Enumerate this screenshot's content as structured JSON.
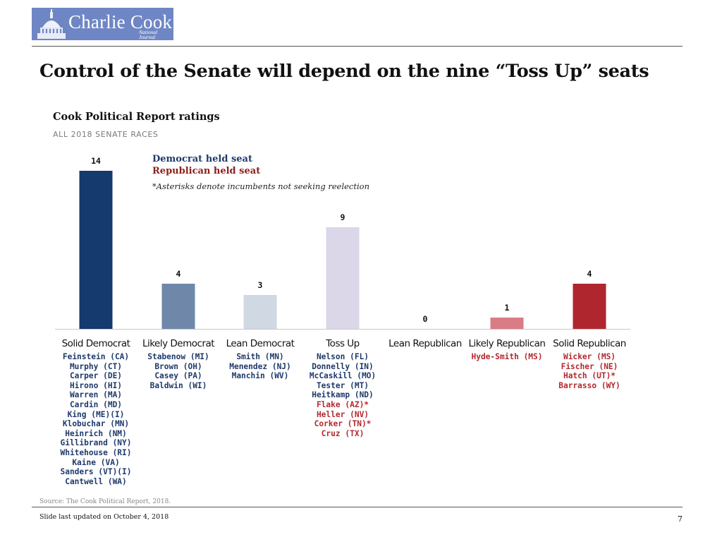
{
  "header": {
    "logo_text": "Charlie Cook",
    "logo_sub_line1": "National",
    "logo_sub_line2": "Journal",
    "title": "Control of the Senate will depend on the nine “Toss Up” seats"
  },
  "legend": {
    "dem": "Democrat held seat",
    "rep": "Republican held seat",
    "note": "*Asterisks denote incumbents not seeking reelection"
  },
  "colors": {
    "dem_text": "#1f3a6b",
    "rep_text": "#b22a2f",
    "logo_bg": "#6f86c4"
  },
  "chart_data": {
    "type": "bar",
    "title": "Cook Political Report ratings",
    "subtitle": "ALL 2018 SENATE RACES",
    "categories": [
      "Solid Democrat",
      "Likely Democrat",
      "Lean Democrat",
      "Toss Up",
      "Lean Republican",
      "Likely Republican",
      "Solid Republican"
    ],
    "values": [
      14,
      4,
      3,
      9,
      0,
      1,
      4
    ],
    "bar_colors": [
      "#143a6e",
      "#6f88aa",
      "#cfd8e3",
      "#dcd7e8",
      "#dcd7e8",
      "#d97c85",
      "#b0262e"
    ],
    "ylim": [
      0,
      14
    ],
    "xlabel": "",
    "ylabel": "",
    "candidates": [
      [
        {
          "name": "Feinstein (CA)",
          "party": "dem"
        },
        {
          "name": "Murphy (CT)",
          "party": "dem"
        },
        {
          "name": "Carper (DE)",
          "party": "dem"
        },
        {
          "name": "Hirono (HI)",
          "party": "dem"
        },
        {
          "name": "Warren (MA)",
          "party": "dem"
        },
        {
          "name": "Cardin (MD)",
          "party": "dem"
        },
        {
          "name": "King (ME)(I)",
          "party": "dem"
        },
        {
          "name": "Klobuchar (MN)",
          "party": "dem"
        },
        {
          "name": "Heinrich (NM)",
          "party": "dem"
        },
        {
          "name": "Gillibrand (NY)",
          "party": "dem"
        },
        {
          "name": "Whitehouse (RI)",
          "party": "dem"
        },
        {
          "name": "Kaine (VA)",
          "party": "dem"
        },
        {
          "name": "Sanders (VT)(I)",
          "party": "dem"
        },
        {
          "name": "Cantwell (WA)",
          "party": "dem"
        }
      ],
      [
        {
          "name": "Stabenow (MI)",
          "party": "dem"
        },
        {
          "name": "Brown (OH)",
          "party": "dem"
        },
        {
          "name": "Casey (PA)",
          "party": "dem"
        },
        {
          "name": "Baldwin (WI)",
          "party": "dem"
        }
      ],
      [
        {
          "name": "Smith (MN)",
          "party": "dem"
        },
        {
          "name": "Menendez (NJ)",
          "party": "dem"
        },
        {
          "name": "Manchin (WV)",
          "party": "dem"
        }
      ],
      [
        {
          "name": "Nelson (FL)",
          "party": "dem"
        },
        {
          "name": "Donnelly (IN)",
          "party": "dem"
        },
        {
          "name": "McCaskill (MO)",
          "party": "dem"
        },
        {
          "name": "Tester (MT)",
          "party": "dem"
        },
        {
          "name": "Heitkamp (ND)",
          "party": "dem"
        },
        {
          "name": "Flake (AZ)*",
          "party": "rep"
        },
        {
          "name": "Heller (NV)",
          "party": "rep"
        },
        {
          "name": "Corker (TN)*",
          "party": "rep"
        },
        {
          "name": "Cruz (TX)",
          "party": "rep"
        }
      ],
      [],
      [
        {
          "name": "Hyde-Smith (MS)",
          "party": "rep"
        }
      ],
      [
        {
          "name": "Wicker (MS)",
          "party": "rep"
        },
        {
          "name": "Fischer (NE)",
          "party": "rep"
        },
        {
          "name": "Hatch (UT)*",
          "party": "rep"
        },
        {
          "name": "Barrasso (WY)",
          "party": "rep"
        }
      ]
    ]
  },
  "footer": {
    "source": "Source: The Cook Political Report, 2018.",
    "updated": "Slide last updated on October 4, 2018",
    "page_number": "7"
  }
}
